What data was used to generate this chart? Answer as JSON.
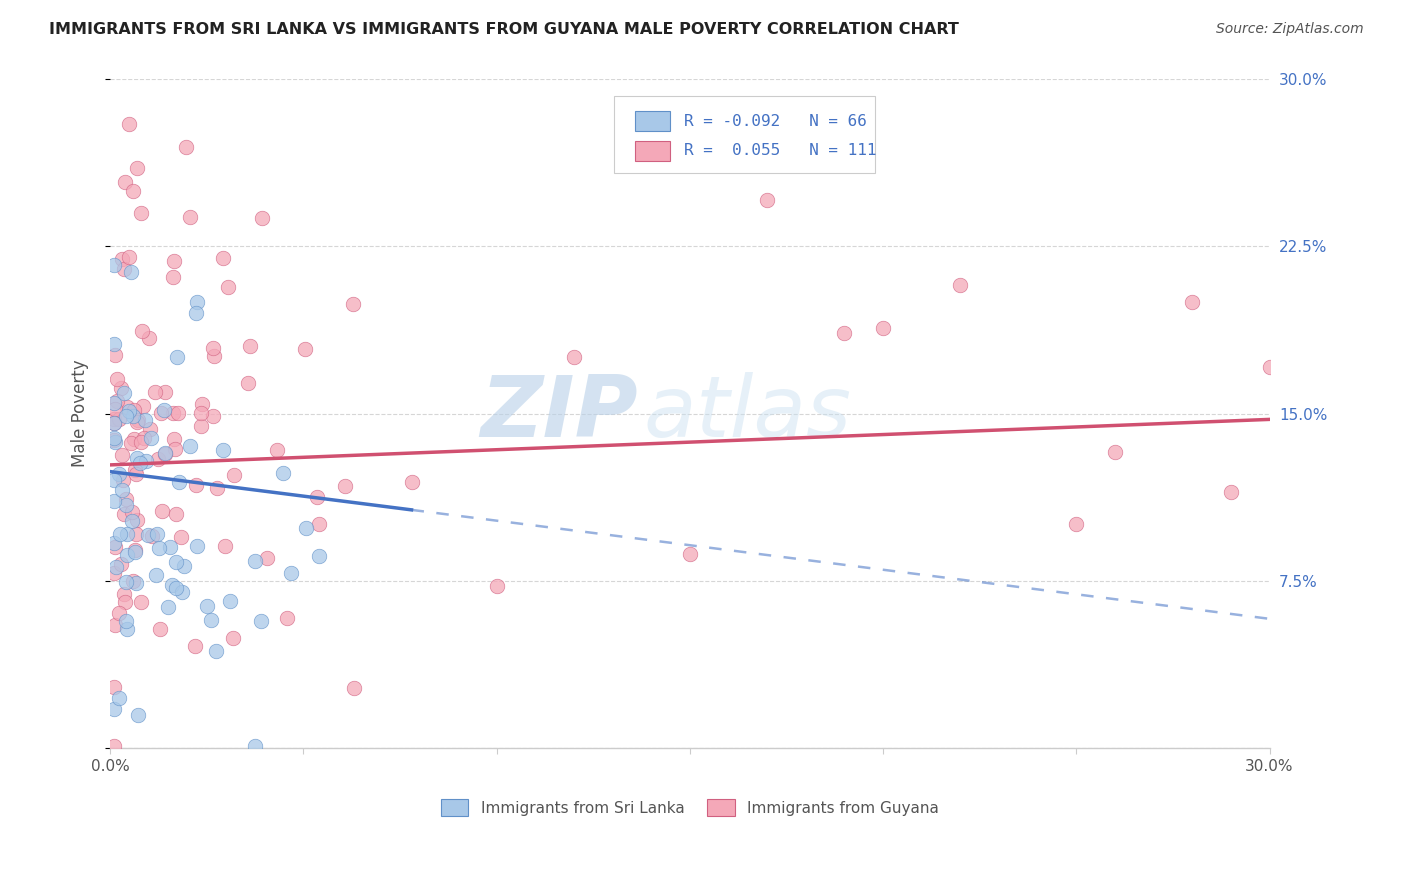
{
  "title": "IMMIGRANTS FROM SRI LANKA VS IMMIGRANTS FROM GUYANA MALE POVERTY CORRELATION CHART",
  "source": "Source: ZipAtlas.com",
  "ylabel": "Male Poverty",
  "legend_label1": "Immigrants from Sri Lanka",
  "legend_label2": "Immigrants from Guyana",
  "R1": -0.092,
  "N1": 66,
  "R2": 0.055,
  "N2": 111,
  "xlim": [
    0.0,
    0.3
  ],
  "ylim": [
    0.0,
    0.3
  ],
  "yticks_right": [
    0.075,
    0.15,
    0.225,
    0.3
  ],
  "color_sri_lanka": "#a8c8e8",
  "color_guyana": "#f4a8b8",
  "edge_sri_lanka": "#6090c8",
  "edge_guyana": "#d06080",
  "trendline_sri_lanka": "#4472c4",
  "trendline_guyana": "#d05070",
  "background_color": "#ffffff",
  "grid_color": "#cccccc",
  "right_axis_color": "#4472c4",
  "text_color": "#555555",
  "title_color": "#222222"
}
